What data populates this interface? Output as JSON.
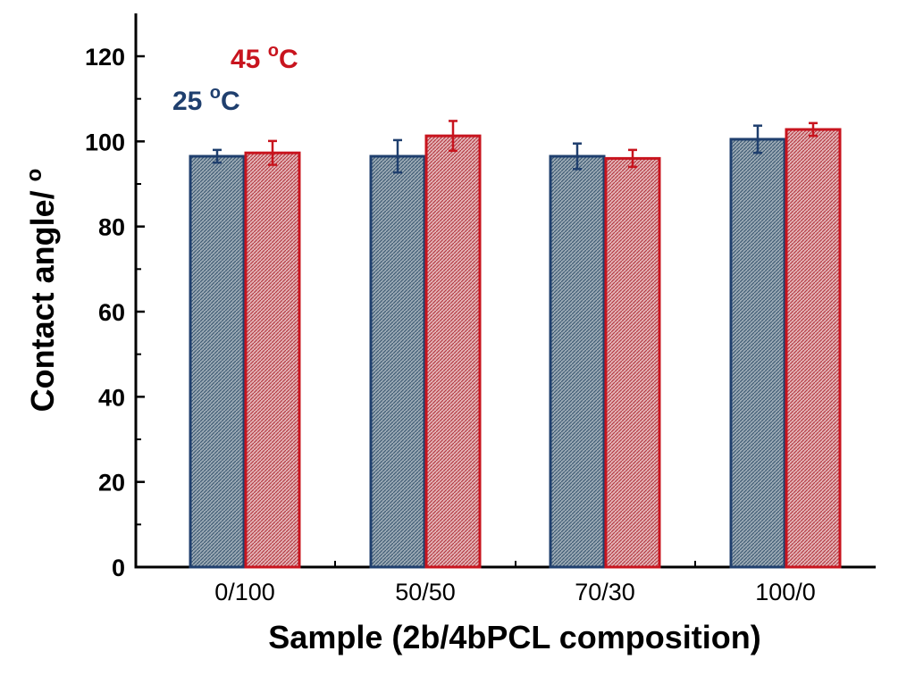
{
  "chart_data": {
    "type": "bar",
    "title": "",
    "xlabel": "Sample (2b/4bPCL composition)",
    "ylabel": "Contact angle/ o",
    "ylim": [
      0,
      126
    ],
    "yticks": [
      0,
      20,
      40,
      60,
      80,
      100,
      120
    ],
    "categories": [
      "0/100",
      "50/50",
      "70/30",
      "100/0"
    ],
    "series": [
      {
        "name": "25 oC",
        "name_main": "25 ",
        "name_sup": "o",
        "name_tail": "C",
        "color": "#1f3f6e",
        "fill": "#7f93a3",
        "values": [
          96.5,
          96.5,
          96.5,
          100.5
        ],
        "errors": [
          1.5,
          3.8,
          3.0,
          3.2
        ]
      },
      {
        "name": "45 oC",
        "name_main": "45 ",
        "name_sup": "o",
        "name_tail": "C",
        "color": "#c8141e",
        "fill": "#cc8f94",
        "values": [
          97.3,
          101.3,
          96.0,
          102.8
        ],
        "errors": [
          2.8,
          3.5,
          2.0,
          1.5
        ]
      }
    ],
    "ylabel_main": "Contact angle/ ",
    "ylabel_sup": "o",
    "legend_position": "top-left",
    "grid": false
  }
}
